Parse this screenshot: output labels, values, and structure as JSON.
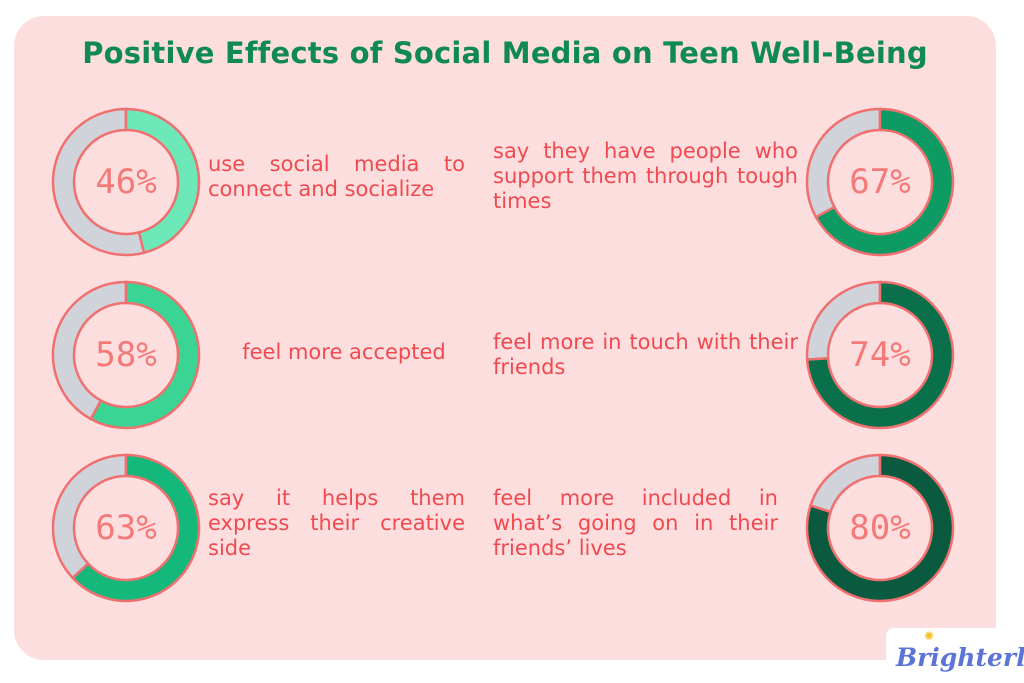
{
  "title": "Positive Effects of Social Media on Teen Well-Being",
  "chart_data": {
    "type": "pie",
    "subtype": "donut",
    "title": "Positive Effects of Social Media on Teen Well-Being",
    "items": [
      {
        "value": 46,
        "label": "46%",
        "text": "use social media to connect and socialize",
        "color": "#6de8b8"
      },
      {
        "value": 58,
        "label": "58%",
        "text": "feel more accepted",
        "color": "#3ad495"
      },
      {
        "value": 63,
        "label": "63%",
        "text": "say it helps them express their creative side",
        "color": "#14b87a"
      },
      {
        "value": 67,
        "label": "67%",
        "text": "say they have people who support them through tough times",
        "color": "#0e9a63"
      },
      {
        "value": 74,
        "label": "74%",
        "text": "feel more in touch with their friends",
        "color": "#0a704b"
      },
      {
        "value": 80,
        "label": "80%",
        "text": "feel more included in what’s going on in their friends’ lives",
        "color": "#0a5a40"
      }
    ],
    "remainder_color": "#d0d3da",
    "outline_color": "#f07070"
  },
  "logo": {
    "text": "Brighterly"
  }
}
